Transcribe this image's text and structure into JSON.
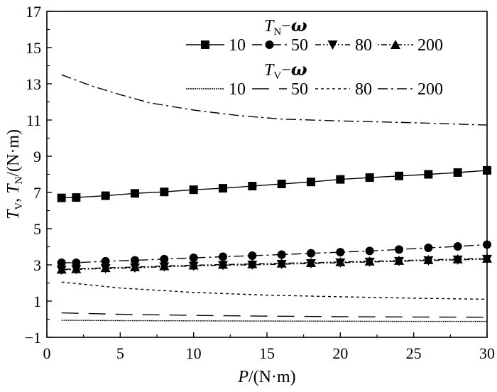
{
  "chart_data": {
    "type": "line",
    "xlabel": {
      "var": "P",
      "unit": "/(N·m)"
    },
    "ylabel": {
      "var1": "T",
      "sub1": "V",
      "sep": ", ",
      "var2": "T",
      "sub2": "N",
      "unit": "/(N·m)"
    },
    "xlim": [
      0,
      30
    ],
    "ylim": [
      -1,
      17
    ],
    "xticks": [
      "0",
      "5",
      "10",
      "15",
      "20",
      "25",
      "30"
    ],
    "yticks": [
      "−1",
      "1",
      "3",
      "5",
      "7",
      "9",
      "11",
      "13",
      "15",
      "17"
    ],
    "grid": false,
    "legend_position": "top-right",
    "legend_groups": [
      {
        "title_var": "T",
        "title_sub": "N",
        "title_dash": "−",
        "title_omega": "ω",
        "entries": [
          "10",
          "50",
          "80",
          "200"
        ]
      },
      {
        "title_var": "T",
        "title_sub": "V",
        "title_dash": "−",
        "title_omega": "ω",
        "entries": [
          "10",
          "50",
          "80",
          "200"
        ]
      }
    ],
    "series": [
      {
        "name": "10",
        "group": "TN",
        "style": "solid",
        "marker": "square",
        "x": [
          1,
          2,
          4,
          6,
          8,
          10,
          12,
          14,
          16,
          18,
          20,
          22,
          24,
          26,
          28,
          30
        ],
        "y": [
          6.7,
          6.72,
          6.82,
          6.95,
          7.03,
          7.15,
          7.23,
          7.35,
          7.47,
          7.58,
          7.72,
          7.82,
          7.91,
          8.0,
          8.1,
          8.22
        ]
      },
      {
        "name": "50",
        "group": "TN",
        "style": "dashdot",
        "marker": "circle",
        "x": [
          1,
          2,
          4,
          6,
          8,
          10,
          12,
          14,
          16,
          18,
          20,
          22,
          24,
          26,
          28,
          30
        ],
        "y": [
          3.12,
          3.12,
          3.2,
          3.25,
          3.32,
          3.39,
          3.45,
          3.51,
          3.57,
          3.64,
          3.7,
          3.77,
          3.85,
          3.94,
          4.02,
          4.12
        ]
      },
      {
        "name": "80",
        "group": "TN",
        "style": "dashdotdot",
        "marker": "triangle-down",
        "x": [
          1,
          2,
          4,
          6,
          8,
          10,
          12,
          14,
          16,
          18,
          20,
          22,
          24,
          26,
          28,
          30
        ],
        "y": [
          2.72,
          2.75,
          2.8,
          2.84,
          2.9,
          2.94,
          2.98,
          3.0,
          3.04,
          3.08,
          3.12,
          3.16,
          3.2,
          3.24,
          3.28,
          3.32
        ]
      },
      {
        "name": "200",
        "group": "TN",
        "style": "dotdashdot",
        "marker": "triangle-up",
        "x": [
          1,
          2,
          4,
          6,
          8,
          10,
          12,
          14,
          16,
          18,
          20,
          22,
          24,
          26,
          28,
          30
        ],
        "y": [
          2.75,
          2.78,
          2.84,
          2.88,
          2.94,
          2.98,
          3.02,
          3.05,
          3.09,
          3.12,
          3.16,
          3.2,
          3.24,
          3.28,
          3.32,
          3.36
        ]
      },
      {
        "name": "10",
        "group": "TV",
        "style": "tightdot",
        "marker": "none",
        "x": [
          1,
          5,
          10,
          15,
          20,
          25,
          30
        ],
        "y": [
          -0.06,
          -0.08,
          -0.09,
          -0.1,
          -0.11,
          -0.12,
          -0.12
        ]
      },
      {
        "name": "50",
        "group": "TV",
        "style": "longdash",
        "marker": "none",
        "x": [
          1,
          5,
          10,
          15,
          20,
          25,
          30
        ],
        "y": [
          0.35,
          0.27,
          0.21,
          0.17,
          0.14,
          0.12,
          0.11
        ]
      },
      {
        "name": "80",
        "group": "TV",
        "style": "shortdash",
        "marker": "none",
        "x": [
          1,
          5,
          10,
          15,
          20,
          25,
          30
        ],
        "y": [
          2.05,
          1.72,
          1.48,
          1.33,
          1.24,
          1.16,
          1.1
        ]
      },
      {
        "name": "200",
        "group": "TV",
        "style": "dashdot",
        "marker": "none",
        "x": [
          1,
          3,
          5,
          7,
          10,
          13,
          16,
          20,
          25,
          30
        ],
        "y": [
          13.5,
          12.9,
          12.4,
          11.95,
          11.55,
          11.25,
          11.05,
          10.95,
          10.85,
          10.72
        ]
      }
    ]
  }
}
